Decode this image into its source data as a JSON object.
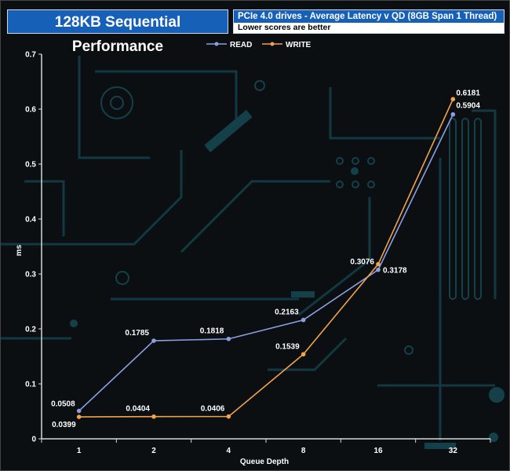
{
  "header": {
    "title": "128KB Sequential Performance",
    "subtitle": "PCIe 4.0 drives - Average Latency v QD (8GB Span 1 Thread)",
    "note": "Lower scores are better"
  },
  "colors": {
    "read": "#8b9fe0",
    "write": "#f0a24c",
    "background": "#0b0f12",
    "circuit": "#14404a",
    "header_blue": "#1660b8"
  },
  "chart_data": {
    "type": "line",
    "title": "PCIe 4.0 drives - Average Latency v QD (8GB Span 1 Thread)",
    "xlabel": "Queue Depth",
    "ylabel": "ms",
    "categories": [
      "1",
      "2",
      "4",
      "8",
      "16",
      "32"
    ],
    "ylim": [
      0,
      0.7
    ],
    "yticks": [
      "0",
      "0.1",
      "0.2",
      "0.3",
      "0.4",
      "0.5",
      "0.6",
      "0.7"
    ],
    "grid": false,
    "legend_position": "top-center",
    "series": [
      {
        "name": "READ",
        "values": [
          0.0508,
          0.1785,
          0.1818,
          0.2163,
          0.3076,
          0.5904
        ],
        "labels": [
          "0.0508",
          "0.1785",
          "0.1818",
          "0.2163",
          "0.3076",
          "0.5904"
        ]
      },
      {
        "name": "WRITE",
        "values": [
          0.0399,
          0.0404,
          0.0406,
          0.1539,
          0.3178,
          0.6181
        ],
        "labels": [
          "0.0399",
          "0.0404",
          "0.0406",
          "0.1539",
          "0.3178",
          "0.6181"
        ]
      }
    ]
  }
}
